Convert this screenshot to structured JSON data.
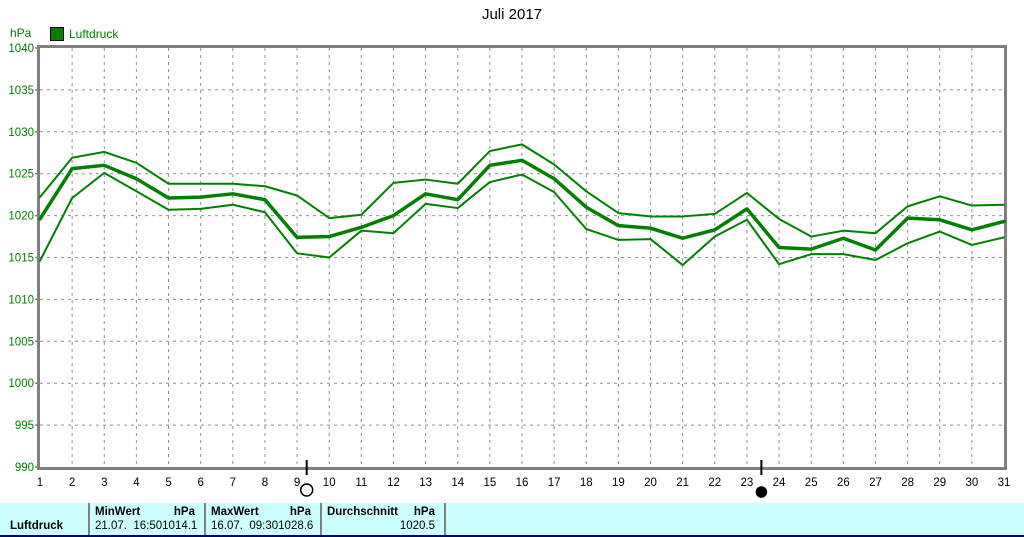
{
  "title": "Juli 2017",
  "legend": {
    "label": "Luftdruck",
    "swatch_color": "#008000"
  },
  "colors": {
    "line": "#008000",
    "axis_text": "#008000",
    "axis_border": "#808080",
    "grid": "#909090",
    "x_labels": "#000000",
    "table_background": "#ccffff",
    "table_bottom_bar": "#000080"
  },
  "chart_data": {
    "type": "line",
    "title": "Juli 2017",
    "xlabel": "",
    "ylabel": "hPa",
    "ylim": [
      990,
      1040
    ],
    "y_tick_step": 5,
    "grid": true,
    "legend_position": "top-left",
    "x": [
      1,
      2,
      3,
      4,
      5,
      6,
      7,
      8,
      9,
      10,
      11,
      12,
      13,
      14,
      15,
      16,
      17,
      18,
      19,
      20,
      21,
      22,
      23,
      24,
      25,
      26,
      27,
      28,
      29,
      30,
      31
    ],
    "series": [
      {
        "name": "Luftdruck daily max",
        "values": [
          1022.2,
          1026.9,
          1027.6,
          1026.3,
          1023.8,
          1023.8,
          1023.8,
          1023.5,
          1022.4,
          1019.7,
          1020.1,
          1023.9,
          1024.3,
          1023.8,
          1027.7,
          1028.5,
          1026.1,
          1022.9,
          1020.3,
          1019.9,
          1019.9,
          1020.2,
          1022.7,
          1019.6,
          1017.5,
          1018.2,
          1017.9,
          1021.1,
          1022.3,
          1021.2,
          1021.3
        ]
      },
      {
        "name": "Luftdruck daily mean",
        "values": [
          1019.6,
          1025.6,
          1026.0,
          1024.4,
          1022.1,
          1022.2,
          1022.6,
          1021.9,
          1017.4,
          1017.5,
          1018.6,
          1020.0,
          1022.6,
          1021.9,
          1026.0,
          1026.6,
          1024.4,
          1021.0,
          1018.8,
          1018.5,
          1017.3,
          1018.3,
          1020.8,
          1016.2,
          1016.0,
          1017.3,
          1015.9,
          1019.7,
          1019.5,
          1018.3,
          1019.3
        ]
      },
      {
        "name": "Luftdruck daily min",
        "values": [
          1014.6,
          1022.1,
          1025.1,
          1022.9,
          1020.7,
          1020.8,
          1021.3,
          1020.4,
          1015.5,
          1015.0,
          1018.2,
          1017.9,
          1021.4,
          1020.9,
          1024.0,
          1024.9,
          1022.8,
          1018.4,
          1017.1,
          1017.2,
          1014.1,
          1017.5,
          1019.5,
          1014.2,
          1015.4,
          1015.4,
          1014.7,
          1016.7,
          1018.1,
          1016.5,
          1017.4
        ]
      }
    ],
    "moon_markers": [
      {
        "day": 9.3,
        "phase": "full-moon"
      },
      {
        "day": 23.45,
        "phase": "new-moon"
      }
    ]
  },
  "stats_table": {
    "row_label": "Luftdruck",
    "columns": [
      {
        "header_left": "MinWert",
        "header_right": "hPa",
        "value_left": "21.07.  16:50",
        "value_right": "1014.1"
      },
      {
        "header_left": "MaxWert",
        "header_right": "hPa",
        "value_left": "16.07.  09:30",
        "value_right": "1028.6"
      },
      {
        "header_left": "Durchschnitt",
        "header_right": "hPa",
        "value_left": "",
        "value_right": "1020.5"
      }
    ]
  }
}
